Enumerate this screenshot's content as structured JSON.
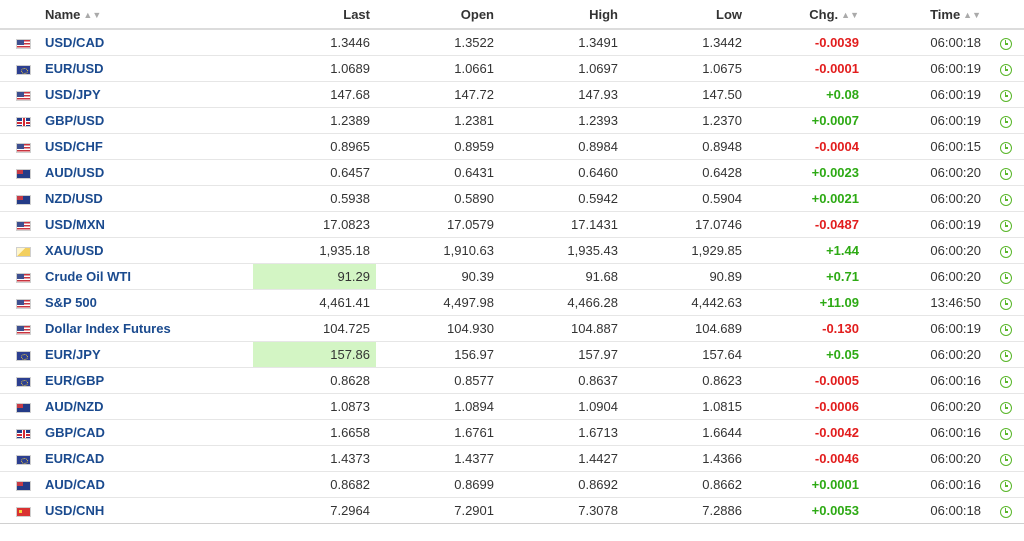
{
  "columns": {
    "name": "Name",
    "last": "Last",
    "open": "Open",
    "high": "High",
    "low": "Low",
    "chg": "Chg.",
    "time": "Time",
    "sort_icon": "updown-sort-icon"
  },
  "colors": {
    "positive": "#2daa14",
    "negative": "#e21d1d",
    "link": "#1a4a8e",
    "highlight": "#d3f5c4"
  },
  "rows": [
    {
      "flag": "us-flag",
      "name": "USD/CAD",
      "last": "1.3446",
      "open": "1.3522",
      "high": "1.3491",
      "low": "1.3442",
      "chg": "-0.0039",
      "dir": "neg",
      "time": "06:00:18",
      "highlight": false
    },
    {
      "flag": "eu-flag",
      "name": "EUR/USD",
      "last": "1.0689",
      "open": "1.0661",
      "high": "1.0697",
      "low": "1.0675",
      "chg": "-0.0001",
      "dir": "neg",
      "time": "06:00:19",
      "highlight": false
    },
    {
      "flag": "us-flag",
      "name": "USD/JPY",
      "last": "147.68",
      "open": "147.72",
      "high": "147.93",
      "low": "147.50",
      "chg": "+0.08",
      "dir": "pos",
      "time": "06:00:19",
      "highlight": false
    },
    {
      "flag": "uk-flag",
      "name": "GBP/USD",
      "last": "1.2389",
      "open": "1.2381",
      "high": "1.2393",
      "low": "1.2370",
      "chg": "+0.0007",
      "dir": "pos",
      "time": "06:00:19",
      "highlight": false
    },
    {
      "flag": "us-flag",
      "name": "USD/CHF",
      "last": "0.8965",
      "open": "0.8959",
      "high": "0.8984",
      "low": "0.8948",
      "chg": "-0.0004",
      "dir": "neg",
      "time": "06:00:15",
      "highlight": false
    },
    {
      "flag": "au-flag",
      "name": "AUD/USD",
      "last": "0.6457",
      "open": "0.6431",
      "high": "0.6460",
      "low": "0.6428",
      "chg": "+0.0023",
      "dir": "pos",
      "time": "06:00:20",
      "highlight": false
    },
    {
      "flag": "nz-flag",
      "name": "NZD/USD",
      "last": "0.5938",
      "open": "0.5890",
      "high": "0.5942",
      "low": "0.5904",
      "chg": "+0.0021",
      "dir": "pos",
      "time": "06:00:20",
      "highlight": false
    },
    {
      "flag": "us-flag",
      "name": "USD/MXN",
      "last": "17.0823",
      "open": "17.0579",
      "high": "17.1431",
      "low": "17.0746",
      "chg": "-0.0487",
      "dir": "neg",
      "time": "06:00:19",
      "highlight": false
    },
    {
      "flag": "xau-flag",
      "name": "XAU/USD",
      "last": "1,935.18",
      "open": "1,910.63",
      "high": "1,935.43",
      "low": "1,929.85",
      "chg": "+1.44",
      "dir": "pos",
      "time": "06:00:20",
      "highlight": false
    },
    {
      "flag": "us-flag",
      "name": "Crude Oil WTI",
      "last": "91.29",
      "open": "90.39",
      "high": "91.68",
      "low": "90.89",
      "chg": "+0.71",
      "dir": "pos",
      "time": "06:00:20",
      "highlight": true
    },
    {
      "flag": "us-flag",
      "name": "S&P 500",
      "last": "4,461.41",
      "open": "4,497.98",
      "high": "4,466.28",
      "low": "4,442.63",
      "chg": "+11.09",
      "dir": "pos",
      "time": "13:46:50",
      "highlight": false
    },
    {
      "flag": "us-flag",
      "name": "Dollar Index Futures",
      "last": "104.725",
      "open": "104.930",
      "high": "104.887",
      "low": "104.689",
      "chg": "-0.130",
      "dir": "neg",
      "time": "06:00:19",
      "highlight": false
    },
    {
      "flag": "eu-flag",
      "name": "EUR/JPY",
      "last": "157.86",
      "open": "156.97",
      "high": "157.97",
      "low": "157.64",
      "chg": "+0.05",
      "dir": "pos",
      "time": "06:00:20",
      "highlight": true
    },
    {
      "flag": "eu-flag",
      "name": "EUR/GBP",
      "last": "0.8628",
      "open": "0.8577",
      "high": "0.8637",
      "low": "0.8623",
      "chg": "-0.0005",
      "dir": "neg",
      "time": "06:00:16",
      "highlight": false
    },
    {
      "flag": "au-flag",
      "name": "AUD/NZD",
      "last": "1.0873",
      "open": "1.0894",
      "high": "1.0904",
      "low": "1.0815",
      "chg": "-0.0006",
      "dir": "neg",
      "time": "06:00:20",
      "highlight": false
    },
    {
      "flag": "uk-flag",
      "name": "GBP/CAD",
      "last": "1.6658",
      "open": "1.6761",
      "high": "1.6713",
      "low": "1.6644",
      "chg": "-0.0042",
      "dir": "neg",
      "time": "06:00:16",
      "highlight": false
    },
    {
      "flag": "eu-flag",
      "name": "EUR/CAD",
      "last": "1.4373",
      "open": "1.4377",
      "high": "1.4427",
      "low": "1.4366",
      "chg": "-0.0046",
      "dir": "neg",
      "time": "06:00:20",
      "highlight": false
    },
    {
      "flag": "au-flag",
      "name": "AUD/CAD",
      "last": "0.8682",
      "open": "0.8699",
      "high": "0.8692",
      "low": "0.8662",
      "chg": "+0.0001",
      "dir": "pos",
      "time": "06:00:16",
      "highlight": false
    },
    {
      "flag": "cn-flag",
      "name": "USD/CNH",
      "last": "7.2964",
      "open": "7.2901",
      "high": "7.3078",
      "low": "7.2886",
      "chg": "+0.0053",
      "dir": "pos",
      "time": "06:00:18",
      "highlight": false
    }
  ]
}
